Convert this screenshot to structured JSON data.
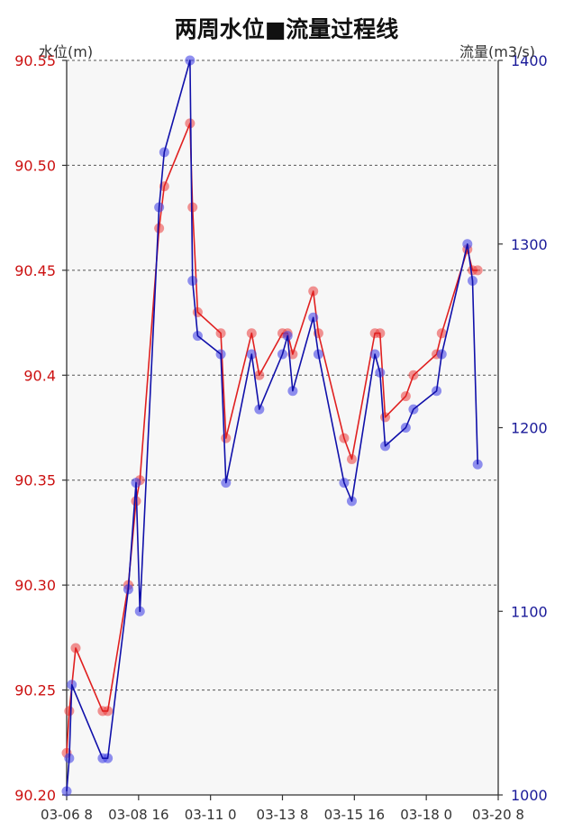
{
  "chart_data": {
    "type": "line",
    "title": "两周水位■流量过程线",
    "y_left_label": "水位(m)",
    "y_right_label": "流量(m3/s)",
    "y_left_lim": [
      90.2,
      90.55
    ],
    "y_right_lim": [
      1000,
      1400
    ],
    "y_left_ticks": [
      "90.20",
      "90.25",
      "90.30",
      "90.35",
      "90.4",
      "90.45",
      "90.50",
      "90.55"
    ],
    "y_right_ticks": [
      "1000",
      "1100",
      "1200",
      "1300",
      "1400"
    ],
    "x_lim": [
      "03-06 8",
      "03-20 8"
    ],
    "x_ticks": [
      "03-06 8",
      "03-08 16",
      "03-11 0",
      "03-13 8",
      "03-15 16",
      "03-18 0",
      "03-20 8"
    ],
    "grid": "horizontal-dashed",
    "colors": {
      "water_level": "#e02020",
      "flow": "#1010aa",
      "left_axis_text": "#cc1111",
      "right_axis_text": "#1a1a99",
      "plot_background": "#f7f7f7"
    },
    "series": [
      {
        "axis": "left",
        "values": [
          [
            "03-06 8",
            90.22
          ],
          [
            "03-06 10",
            90.24
          ],
          [
            "03-06 15",
            90.27
          ],
          [
            "03-07 12",
            90.24
          ],
          [
            "03-07 16",
            90.24
          ],
          [
            "03-08 8",
            90.3
          ],
          [
            "03-08 14",
            90.34
          ],
          [
            "03-08 17",
            90.35
          ],
          [
            "03-09 8",
            90.47
          ],
          [
            "03-09 12",
            90.49
          ],
          [
            "03-10 8",
            90.52
          ],
          [
            "03-10 10",
            90.48
          ],
          [
            "03-10 14",
            90.43
          ],
          [
            "03-11 8",
            90.42
          ],
          [
            "03-11 12",
            90.37
          ],
          [
            "03-12 8",
            90.42
          ],
          [
            "03-12 14",
            90.4
          ],
          [
            "03-13 8",
            90.42
          ],
          [
            "03-13 12",
            90.42
          ],
          [
            "03-13 16",
            90.41
          ],
          [
            "03-14 8",
            90.44
          ],
          [
            "03-14 12",
            90.42
          ],
          [
            "03-15 8",
            90.37
          ],
          [
            "03-15 14",
            90.36
          ],
          [
            "03-16 8",
            90.42
          ],
          [
            "03-16 12",
            90.42
          ],
          [
            "03-16 16",
            90.38
          ],
          [
            "03-17 8",
            90.39
          ],
          [
            "03-17 14",
            90.4
          ],
          [
            "03-18 8",
            90.41
          ],
          [
            "03-18 12",
            90.42
          ],
          [
            "03-19 8",
            90.46
          ],
          [
            "03-19 12",
            90.45
          ],
          [
            "03-19 16",
            90.45
          ]
        ]
      },
      {
        "axis": "right",
        "values": [
          [
            "03-06 8",
            1002
          ],
          [
            "03-06 10",
            1020
          ],
          [
            "03-06 12",
            1060
          ],
          [
            "03-07 12",
            1020
          ],
          [
            "03-07 16",
            1020
          ],
          [
            "03-08 8",
            1112
          ],
          [
            "03-08 14",
            1170
          ],
          [
            "03-08 17",
            1100
          ],
          [
            "03-09 8",
            1320
          ],
          [
            "03-09 12",
            1350
          ],
          [
            "03-10 8",
            1400
          ],
          [
            "03-10 10",
            1280
          ],
          [
            "03-10 14",
            1250
          ],
          [
            "03-11 8",
            1240
          ],
          [
            "03-11 12",
            1170
          ],
          [
            "03-12 8",
            1240
          ],
          [
            "03-12 14",
            1210
          ],
          [
            "03-13 8",
            1240
          ],
          [
            "03-13 12",
            1250
          ],
          [
            "03-13 16",
            1220
          ],
          [
            "03-14 8",
            1260
          ],
          [
            "03-14 12",
            1240
          ],
          [
            "03-15 8",
            1170
          ],
          [
            "03-15 14",
            1160
          ],
          [
            "03-16 8",
            1240
          ],
          [
            "03-16 12",
            1230
          ],
          [
            "03-16 16",
            1190
          ],
          [
            "03-17 8",
            1200
          ],
          [
            "03-17 14",
            1210
          ],
          [
            "03-18 8",
            1220
          ],
          [
            "03-18 12",
            1240
          ],
          [
            "03-19 8",
            1300
          ],
          [
            "03-19 12",
            1280
          ],
          [
            "03-19 16",
            1180
          ]
        ]
      }
    ]
  }
}
